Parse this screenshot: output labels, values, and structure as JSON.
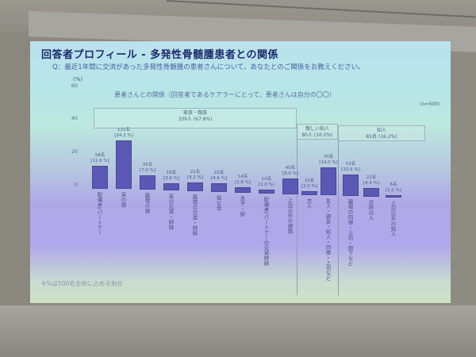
{
  "slide": {
    "title": "回答者プロフィール - 多発性骨髄腫患者との関係",
    "question": "Q：最近1年間に交流があった多発性骨髄腫の患者さんについて、あなたとのご関係をお教えください。",
    "footnote": "※%は500名全体に占める割合"
  },
  "chart_data": {
    "type": "bar",
    "title": "患者さんとの関係（回答者であるケアラーにとって、患者さんは自分の〇〇）",
    "ylabel": "(%)",
    "n_label": "(n=500)",
    "ylim": [
      0,
      60
    ],
    "yticks": [
      "60",
      "40",
      "20",
      "0"
    ],
    "groups": [
      {
        "name": "家族・親族",
        "summary": "339人 (67.8%)"
      },
      {
        "name": "親しい知人",
        "summary": "80人 (16.0%)"
      },
      {
        "name": "知人",
        "summary": "81名 (16.2%)"
      }
    ],
    "categories": [
      "配偶者/パートナー",
      "実の親",
      "義理の親",
      "実の兄弟・姉妹",
      "義理の兄弟・姉妹",
      "祖父母",
      "息子・娘",
      "配偶者/パートナーの兄弟姉妹",
      "上記以外の親族",
      "恋人",
      "友人・親友・知人・同僚・上司など",
      "職場の同僚・上司・部下など",
      "近所の人",
      "上記以外の知人"
    ],
    "counts": [
      "58名",
      "121名",
      "35名",
      "18名",
      "21名",
      "22名",
      "14名",
      "10名",
      "40名",
      "10名",
      "70名",
      "53名",
      "22名",
      "6名"
    ],
    "values": [
      11.6,
      24.2,
      7.0,
      3.6,
      4.2,
      4.4,
      2.8,
      2.0,
      8.0,
      2.0,
      14.0,
      10.6,
      4.4,
      1.2
    ],
    "value_labels": [
      "[11.6 %]",
      "[24.2 %]",
      "[7.0 %]",
      "[3.6 %]",
      "[4.2 %]",
      "[4.4 %]",
      "[2.8 %]",
      "[2.0 %]",
      "[8.0 %]",
      "[2.0 %]",
      "[14.0 %]",
      "[10.6 %]",
      "[4.4 %]",
      "[1.2 %]"
    ],
    "bar_color": "#5b58b5",
    "grid": false,
    "legend": "none"
  }
}
